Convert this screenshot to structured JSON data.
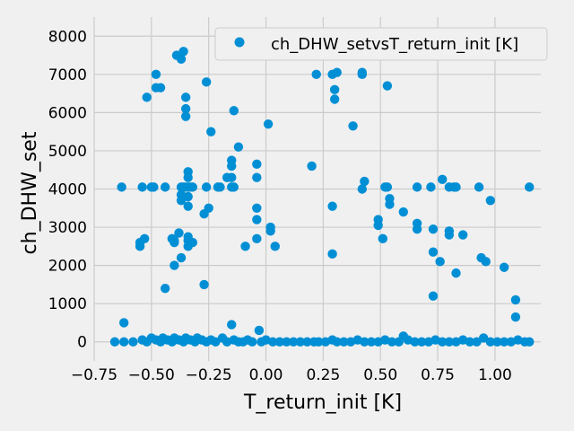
{
  "chart_data": {
    "type": "scatter",
    "title": "",
    "xlabel": "T_return_init [K]",
    "ylabel": "ch_DHW_set",
    "xlim": [
      -0.75,
      1.2
    ],
    "ylim": [
      -500,
      8500
    ],
    "xticks": [
      -0.75,
      -0.5,
      -0.25,
      0.0,
      0.25,
      0.5,
      0.75,
      1.0
    ],
    "xtick_labels": [
      "−0.75",
      "−0.50",
      "−0.25",
      "0.00",
      "0.25",
      "0.50",
      "0.75",
      "1.00"
    ],
    "yticks": [
      0,
      1000,
      2000,
      3000,
      4000,
      5000,
      6000,
      7000,
      8000
    ],
    "ytick_labels": [
      "0",
      "1000",
      "2000",
      "3000",
      "4000",
      "5000",
      "6000",
      "7000",
      "8000"
    ],
    "grid": true,
    "legend_position": "top-right",
    "color": "#008fd5",
    "series": [
      {
        "name": "ch_DHW_setvsT_return_init [K]",
        "points": [
          [
            -0.36,
            7600
          ],
          [
            -0.39,
            7500
          ],
          [
            -0.37,
            7400
          ],
          [
            -0.48,
            7000
          ],
          [
            -0.48,
            6650
          ],
          [
            -0.46,
            6650
          ],
          [
            -0.52,
            6400
          ],
          [
            -0.35,
            6400
          ],
          [
            -0.35,
            6100
          ],
          [
            -0.35,
            5900
          ],
          [
            -0.26,
            6800
          ],
          [
            -0.24,
            5500
          ],
          [
            -0.14,
            6050
          ],
          [
            -0.12,
            5100
          ],
          [
            -0.13,
            7950
          ],
          [
            -0.07,
            7750
          ],
          [
            0.01,
            5700
          ],
          [
            0.22,
            7500
          ],
          [
            0.22,
            7000
          ],
          [
            0.29,
            8000
          ],
          [
            0.29,
            7000
          ],
          [
            0.3,
            6600
          ],
          [
            0.3,
            6350
          ],
          [
            0.31,
            7050
          ],
          [
            0.38,
            5650
          ],
          [
            0.42,
            7050
          ],
          [
            0.42,
            7000
          ],
          [
            0.53,
            6700
          ],
          [
            -0.15,
            4750
          ],
          [
            -0.15,
            4600
          ],
          [
            -0.17,
            4300
          ],
          [
            -0.15,
            4300
          ],
          [
            -0.04,
            4650
          ],
          [
            -0.04,
            4300
          ],
          [
            0.2,
            4600
          ],
          [
            -0.63,
            4050
          ],
          [
            -0.54,
            4050
          ],
          [
            -0.5,
            4050
          ],
          [
            -0.49,
            4050
          ],
          [
            -0.44,
            4050
          ],
          [
            -0.37,
            4050
          ],
          [
            -0.36,
            4050
          ],
          [
            -0.35,
            4050
          ],
          [
            -0.34,
            4050
          ],
          [
            -0.33,
            4050
          ],
          [
            -0.32,
            4050
          ],
          [
            -0.26,
            4050
          ],
          [
            -0.21,
            4050
          ],
          [
            -0.2,
            4050
          ],
          [
            -0.15,
            4050
          ],
          [
            -0.14,
            4050
          ],
          [
            -0.34,
            4450
          ],
          [
            -0.34,
            4300
          ],
          [
            -0.34,
            3800
          ],
          [
            -0.34,
            3550
          ],
          [
            -0.37,
            3850
          ],
          [
            -0.37,
            3700
          ],
          [
            0.43,
            4200
          ],
          [
            0.42,
            4000
          ],
          [
            0.52,
            4050
          ],
          [
            0.53,
            4050
          ],
          [
            0.54,
            3750
          ],
          [
            0.54,
            3600
          ],
          [
            0.66,
            4050
          ],
          [
            0.72,
            4050
          ],
          [
            0.77,
            4250
          ],
          [
            0.8,
            4050
          ],
          [
            0.82,
            4050
          ],
          [
            0.83,
            4050
          ],
          [
            0.93,
            4050
          ],
          [
            0.98,
            3700
          ],
          [
            1.15,
            4050
          ],
          [
            0.29,
            3550
          ],
          [
            -0.04,
            3500
          ],
          [
            -0.04,
            3200
          ],
          [
            -0.25,
            3500
          ],
          [
            -0.27,
            3350
          ],
          [
            -0.55,
            2600
          ],
          [
            -0.55,
            2500
          ],
          [
            -0.53,
            2700
          ],
          [
            -0.41,
            2700
          ],
          [
            -0.4,
            2650
          ],
          [
            -0.4,
            2600
          ],
          [
            -0.38,
            2850
          ],
          [
            -0.34,
            2750
          ],
          [
            -0.34,
            2650
          ],
          [
            -0.34,
            2500
          ],
          [
            -0.32,
            2600
          ],
          [
            -0.37,
            2200
          ],
          [
            -0.4,
            2000
          ],
          [
            -0.44,
            1400
          ],
          [
            -0.27,
            1500
          ],
          [
            -0.09,
            2500
          ],
          [
            -0.04,
            2700
          ],
          [
            0.02,
            3000
          ],
          [
            0.02,
            2900
          ],
          [
            0.04,
            2500
          ],
          [
            0.29,
            2300
          ],
          [
            0.49,
            3200
          ],
          [
            0.49,
            3050
          ],
          [
            0.51,
            2700
          ],
          [
            0.6,
            3400
          ],
          [
            0.66,
            3100
          ],
          [
            0.66,
            2950
          ],
          [
            0.73,
            2950
          ],
          [
            0.73,
            2350
          ],
          [
            0.76,
            2100
          ],
          [
            0.8,
            2900
          ],
          [
            0.8,
            2800
          ],
          [
            0.83,
            1800
          ],
          [
            0.86,
            2800
          ],
          [
            0.73,
            1200
          ],
          [
            0.94,
            2200
          ],
          [
            0.96,
            2100
          ],
          [
            1.04,
            1950
          ],
          [
            1.09,
            1100
          ],
          [
            1.09,
            650
          ],
          [
            -0.62,
            500
          ],
          [
            -0.15,
            450
          ],
          [
            -0.03,
            300
          ],
          [
            -0.66,
            0
          ],
          [
            -0.62,
            0
          ],
          [
            -0.58,
            0
          ],
          [
            -0.54,
            50
          ],
          [
            -0.52,
            0
          ],
          [
            -0.5,
            100
          ],
          [
            -0.48,
            50
          ],
          [
            -0.46,
            0
          ],
          [
            -0.45,
            100
          ],
          [
            -0.43,
            50
          ],
          [
            -0.41,
            0
          ],
          [
            -0.4,
            100
          ],
          [
            -0.38,
            50
          ],
          [
            -0.36,
            0
          ],
          [
            -0.35,
            100
          ],
          [
            -0.33,
            50
          ],
          [
            -0.31,
            0
          ],
          [
            -0.3,
            100
          ],
          [
            -0.28,
            50
          ],
          [
            -0.26,
            0
          ],
          [
            -0.24,
            50
          ],
          [
            -0.22,
            0
          ],
          [
            -0.19,
            100
          ],
          [
            -0.17,
            0
          ],
          [
            -0.14,
            50
          ],
          [
            -0.12,
            0
          ],
          [
            -0.1,
            0
          ],
          [
            -0.08,
            50
          ],
          [
            -0.06,
            0
          ],
          [
            -0.02,
            0
          ],
          [
            0.0,
            50
          ],
          [
            0.03,
            0
          ],
          [
            0.06,
            0
          ],
          [
            0.09,
            0
          ],
          [
            0.12,
            0
          ],
          [
            0.15,
            0
          ],
          [
            0.18,
            0
          ],
          [
            0.21,
            0
          ],
          [
            0.23,
            0
          ],
          [
            0.26,
            0
          ],
          [
            0.29,
            50
          ],
          [
            0.31,
            0
          ],
          [
            0.34,
            0
          ],
          [
            0.37,
            0
          ],
          [
            0.4,
            50
          ],
          [
            0.43,
            0
          ],
          [
            0.46,
            0
          ],
          [
            0.49,
            0
          ],
          [
            0.52,
            50
          ],
          [
            0.55,
            0
          ],
          [
            0.58,
            0
          ],
          [
            0.6,
            150
          ],
          [
            0.62,
            50
          ],
          [
            0.65,
            0
          ],
          [
            0.68,
            0
          ],
          [
            0.71,
            0
          ],
          [
            0.74,
            50
          ],
          [
            0.77,
            0
          ],
          [
            0.8,
            0
          ],
          [
            0.83,
            0
          ],
          [
            0.86,
            50
          ],
          [
            0.89,
            0
          ],
          [
            0.92,
            0
          ],
          [
            0.95,
            100
          ],
          [
            0.98,
            0
          ],
          [
            1.01,
            0
          ],
          [
            1.04,
            0
          ],
          [
            1.07,
            0
          ],
          [
            1.1,
            50
          ],
          [
            1.13,
            0
          ],
          [
            1.15,
            0
          ]
        ]
      }
    ]
  }
}
